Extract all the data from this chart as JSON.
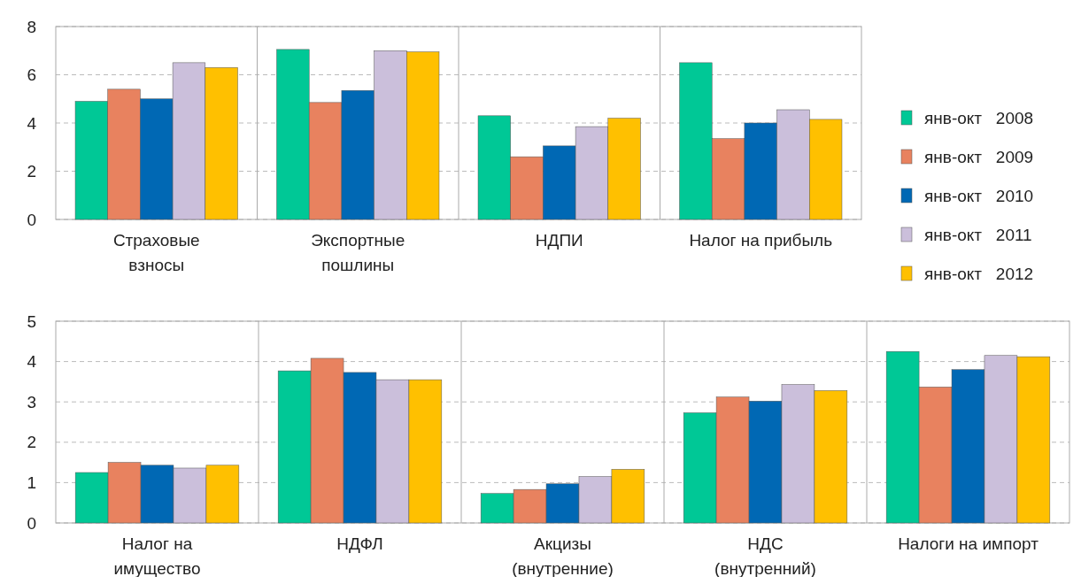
{
  "chart_data": [
    {
      "type": "bar",
      "categories": [
        "Страховые\nвзносы",
        "Экспортные\nпошлины",
        "НДПИ",
        "Налог на прибыль"
      ],
      "series": [
        {
          "name": "янв-окт   2008",
          "color": "#00c896",
          "values": [
            4.9,
            7.05,
            4.3,
            6.5
          ]
        },
        {
          "name": "янв-окт   2009",
          "color": "#e8825f",
          "values": [
            5.4,
            4.85,
            2.6,
            3.35
          ]
        },
        {
          "name": "янв-окт   2010",
          "color": "#0068b4",
          "values": [
            5.0,
            5.35,
            3.05,
            4.0
          ]
        },
        {
          "name": "янв-окт   2011",
          "color": "#cbbfdb",
          "values": [
            6.5,
            7.0,
            3.85,
            4.55
          ]
        },
        {
          "name": "янв-окт   2012",
          "color": "#ffc000",
          "values": [
            6.3,
            6.95,
            4.2,
            4.15
          ]
        }
      ],
      "ylim": [
        0,
        8
      ],
      "yticks": [
        0,
        2,
        4,
        6,
        8
      ],
      "grid": true,
      "legend": "right"
    },
    {
      "type": "bar",
      "categories": [
        "Налог на\nимущество",
        "НДФЛ",
        "Акцизы\n(внутренние)",
        "НДС\n(внутренний)",
        "Налоги на импорт"
      ],
      "series": [
        {
          "color": "#00c896",
          "values": [
            1.25,
            3.77,
            0.73,
            2.73,
            4.25
          ]
        },
        {
          "color": "#e8825f",
          "values": [
            1.5,
            4.08,
            0.83,
            3.12,
            3.37
          ]
        },
        {
          "color": "#0068b4",
          "values": [
            1.43,
            3.73,
            0.97,
            3.02,
            3.8
          ]
        },
        {
          "color": "#cbbfdb",
          "values": [
            1.36,
            3.55,
            1.15,
            3.43,
            4.15
          ]
        },
        {
          "color": "#ffc000",
          "values": [
            1.43,
            3.55,
            1.33,
            3.28,
            4.12
          ]
        }
      ],
      "ylim": [
        0,
        5
      ],
      "yticks": [
        0,
        1,
        2,
        3,
        4,
        5
      ],
      "grid": true
    }
  ]
}
